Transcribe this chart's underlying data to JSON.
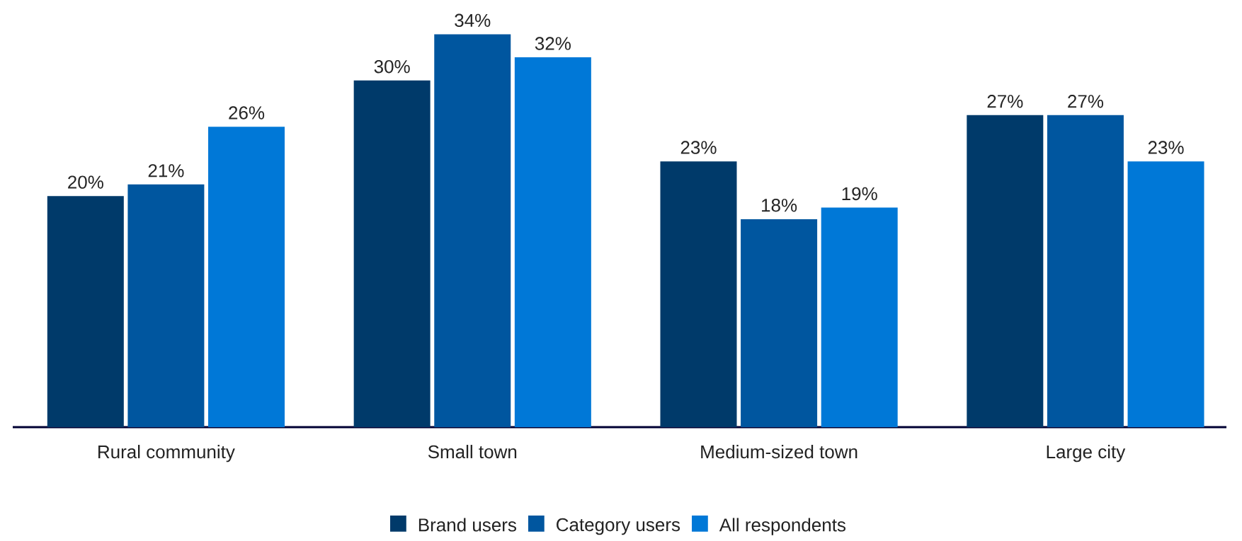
{
  "chart_data": {
    "type": "bar",
    "categories": [
      "Rural community",
      "Small town",
      "Medium-sized town",
      "Large city"
    ],
    "series": [
      {
        "name": "Brand users",
        "color": "#003a6a",
        "values": [
          20,
          30,
          23,
          27
        ],
        "value_labels": [
          "20%",
          "30%",
          "23%",
          "27%"
        ]
      },
      {
        "name": "Category users",
        "color": "#00569f",
        "values": [
          21,
          34,
          18,
          27
        ],
        "value_labels": [
          "21%",
          "34%",
          "18%",
          "27%"
        ]
      },
      {
        "name": "All respondents",
        "color": "#0078d7",
        "values": [
          26,
          32,
          19,
          23
        ],
        "value_labels": [
          "26%",
          "32%",
          "19%",
          "23%"
        ]
      }
    ],
    "legend": "bottom"
  }
}
